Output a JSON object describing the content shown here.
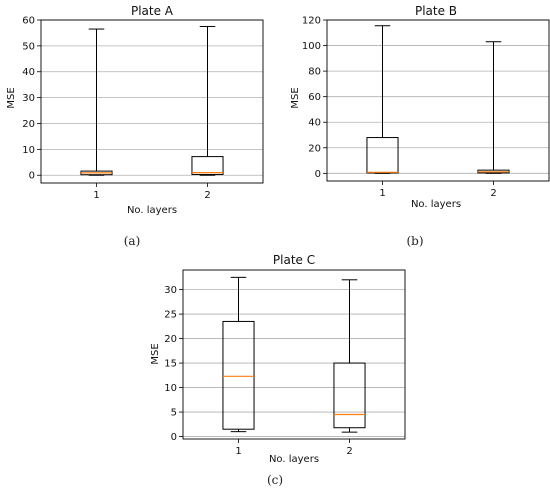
{
  "figure": {
    "background": "#ffffff",
    "box_color": "#000000",
    "median_color": "#ff7f0e",
    "grid_color": "#b0b0b0"
  },
  "chart_data": [
    {
      "type": "boxplot",
      "title": "Plate A",
      "caption": "(a)",
      "xlabel": "No. layers",
      "ylabel": "MSE",
      "categories": [
        "1",
        "2"
      ],
      "ylim": [
        -3,
        60
      ],
      "yticks": [
        0,
        10,
        20,
        30,
        40,
        50,
        60
      ],
      "grid": "y",
      "boxes": [
        {
          "category": "1",
          "whislo": 0.0,
          "q1": 0.2,
          "med": 0.9,
          "q3": 1.6,
          "whishi": 56.5
        },
        {
          "category": "2",
          "whislo": 0.0,
          "q1": 0.3,
          "med": 1.0,
          "q3": 7.2,
          "whishi": 57.5
        }
      ]
    },
    {
      "type": "boxplot",
      "title": "Plate B",
      "caption": "(b)",
      "xlabel": "No. layers",
      "ylabel": "MSE",
      "categories": [
        "1",
        "2"
      ],
      "ylim": [
        -6,
        120
      ],
      "yticks": [
        0,
        20,
        40,
        60,
        80,
        100,
        120
      ],
      "grid": "y",
      "boxes": [
        {
          "category": "1",
          "whislo": 0.0,
          "q1": 0.3,
          "med": 0.8,
          "q3": 28.0,
          "whishi": 115.5
        },
        {
          "category": "2",
          "whislo": 0.0,
          "q1": 0.3,
          "med": 1.2,
          "q3": 2.5,
          "whishi": 103.0
        }
      ]
    },
    {
      "type": "boxplot",
      "title": "Plate C",
      "caption": "(c)",
      "xlabel": "No. layers",
      "ylabel": "MSE",
      "categories": [
        "1",
        "2"
      ],
      "ylim": [
        -0.5,
        34
      ],
      "yticks": [
        0,
        5,
        10,
        15,
        20,
        25,
        30
      ],
      "grid": "y",
      "boxes": [
        {
          "category": "1",
          "whislo": 1.0,
          "q1": 1.5,
          "med": 12.3,
          "q3": 23.5,
          "whishi": 32.5
        },
        {
          "category": "2",
          "whislo": 0.9,
          "q1": 1.8,
          "med": 4.5,
          "q3": 15.0,
          "whishi": 32.0
        }
      ]
    }
  ]
}
